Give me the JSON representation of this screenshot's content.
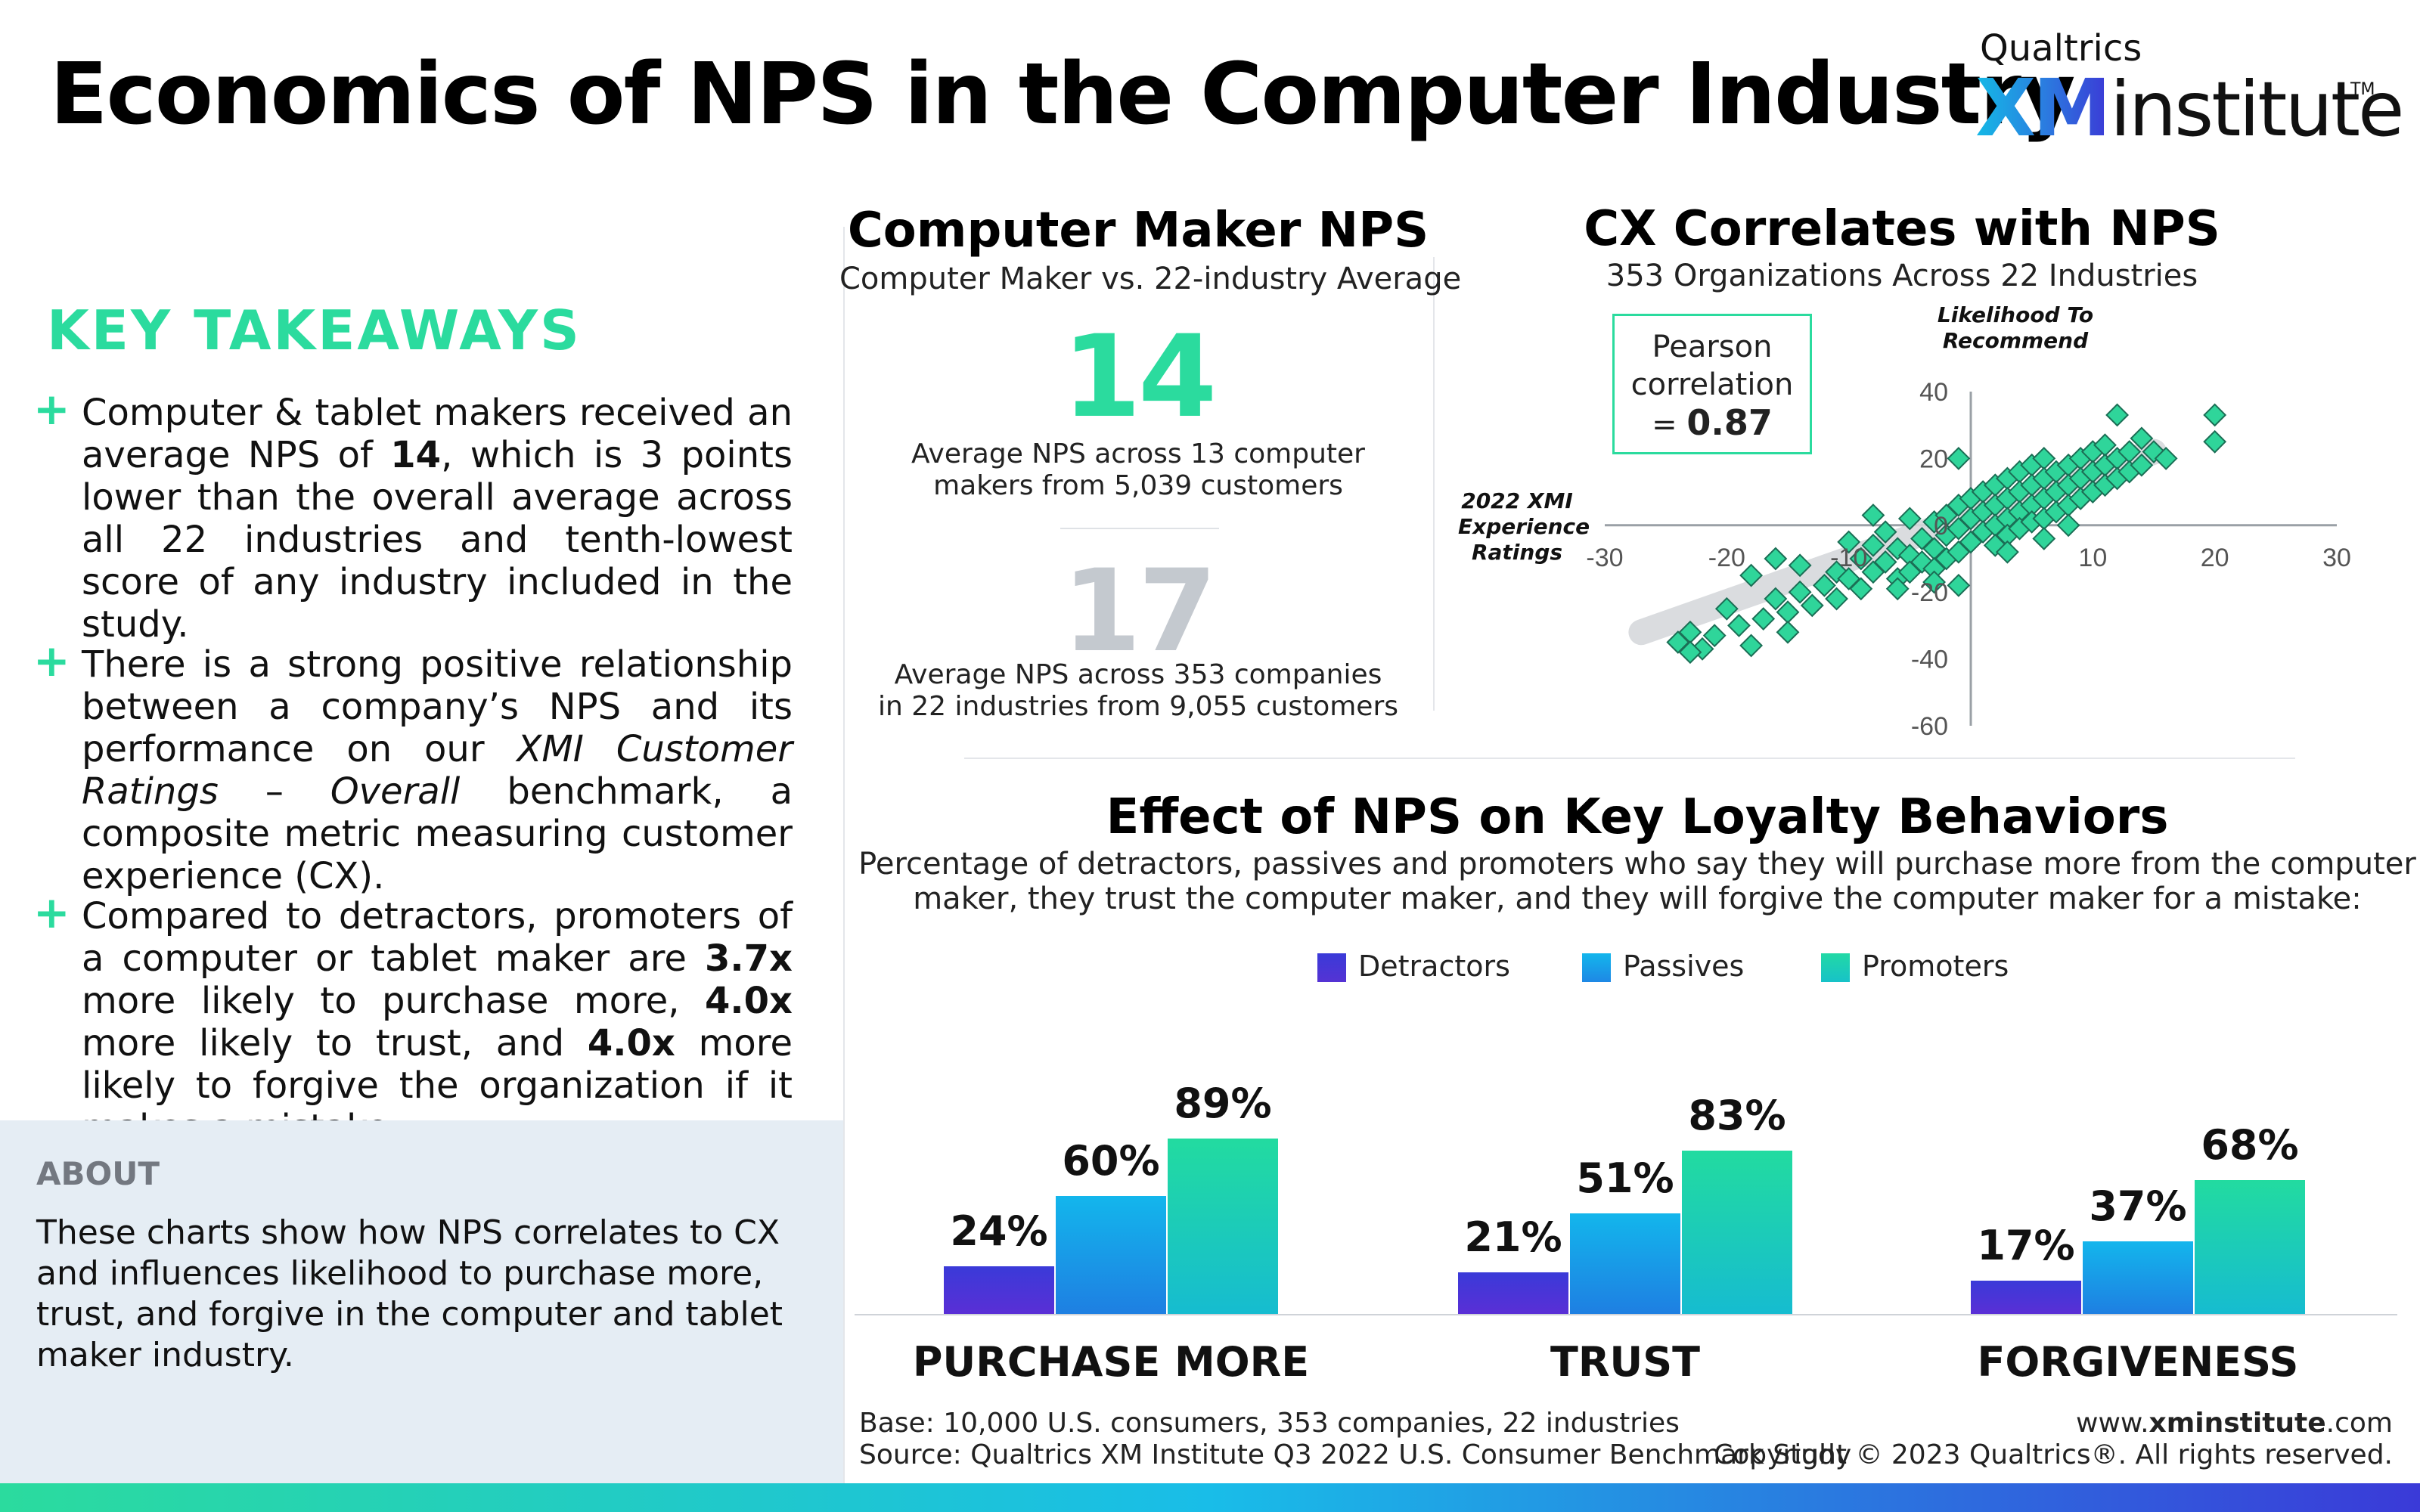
{
  "header": {
    "title": "Economics of NPS in the Computer Industry",
    "logo_top": "Qualtrics",
    "logo_xm": "XM",
    "logo_institute": "institute",
    "logo_tm": "TM"
  },
  "left": {
    "takeaways_heading": "KEY TAKEAWAYS",
    "bullet_symbol": "+",
    "p1": {
      "a": "Computer & tablet makers received an average NPS of ",
      "b": "14",
      "c": ", which is 3 points lower than the overall average across all 22 industries and tenth-lowest score of any industry included in the study."
    },
    "p2": {
      "a": "There is a strong positive relationship between a company’s NPS and its performance on our ",
      "i1": "XMI Customer Ratings",
      "mid": " – ",
      "i2": "Overall",
      "c": " benchmark, a composite metric measuring customer experience (CX)."
    },
    "p3": {
      "a": "Compared to detractors, promoters of a computer or tablet maker are ",
      "b1": "3.7x",
      "c": " more likely to purchase more, ",
      "b2": "4.0x",
      "d": " more likely to trust, and ",
      "b3": "4.0x",
      "e": " more likely to forgive the organization if it makes a mistake."
    },
    "about_heading": "ABOUT",
    "about_text": "These charts show how NPS correlates to CX and influences likelihood to purchase more, trust, and forgive in the computer and tablet maker industry."
  },
  "nps_panel": {
    "title": "Computer Maker NPS",
    "subtitle": "Computer Maker vs. 22-industry Average",
    "value_industry": "14",
    "desc_industry_1": "Average NPS across 13 computer",
    "desc_industry_2": "makers from 5,039 customers",
    "value_average": "17",
    "desc_average_1": "Average NPS across 353 companies",
    "desc_average_2": "in 22 industries from 9,055 customers"
  },
  "colors": {
    "accent": "#2bdb9e",
    "detractors": "#4a34d6",
    "passives": "#13b6ec",
    "promoters": "#22d9a5",
    "grey": "#c4c9cf"
  },
  "chart_data": [
    {
      "type": "scatter",
      "title": "CX Correlates with NPS",
      "subtitle": "353 Organizations Across 22 Industries",
      "xlabel": "2022 XMI Experience Ratings",
      "ylabel": "Likelihood To Recommend",
      "annotation": {
        "line1": "Pearson",
        "line2": "correlation",
        "line3_prefix": "= ",
        "value": "0.87"
      },
      "xlim": [
        -30,
        30
      ],
      "ylim": [
        -60,
        40
      ],
      "xticks": [
        "-30",
        "-20",
        "-10",
        "10",
        "20",
        "30"
      ],
      "yticks": [
        "40",
        "20",
        "0",
        "-20",
        "-40",
        "-60"
      ],
      "xtick_values": [
        -30,
        -20,
        -10,
        10,
        20,
        30
      ],
      "ytick_values": [
        40,
        20,
        0,
        -20,
        -40,
        -60
      ],
      "trend_band": [
        [
          -27,
          -32
        ],
        [
          15,
          22
        ]
      ],
      "points": [
        [
          -24,
          -35
        ],
        [
          -23,
          -32
        ],
        [
          -22,
          -37
        ],
        [
          -23,
          -38
        ],
        [
          -21,
          -33
        ],
        [
          -20,
          -25
        ],
        [
          -19,
          -30
        ],
        [
          -18,
          -36
        ],
        [
          -17,
          -28
        ],
        [
          -16,
          -22
        ],
        [
          -15,
          -26
        ],
        [
          -15,
          -32
        ],
        [
          -14,
          -20
        ],
        [
          -13,
          -24
        ],
        [
          -14,
          -12
        ],
        [
          -12,
          -18
        ],
        [
          -11,
          -14
        ],
        [
          -11,
          -22
        ],
        [
          -10,
          -16
        ],
        [
          -9,
          -10
        ],
        [
          -9,
          -19
        ],
        [
          -8,
          -6
        ],
        [
          -8,
          -14
        ],
        [
          -7,
          -2
        ],
        [
          -7,
          -11
        ],
        [
          -6,
          -7
        ],
        [
          -6,
          -16
        ],
        [
          -5,
          2
        ],
        [
          -5,
          -9
        ],
        [
          -5,
          -14
        ],
        [
          -4,
          -4
        ],
        [
          -4,
          -11
        ],
        [
          -3,
          1
        ],
        [
          -3,
          -7
        ],
        [
          -3,
          -13
        ],
        [
          -2,
          3
        ],
        [
          -2,
          -3
        ],
        [
          -2,
          -10
        ],
        [
          -1,
          6
        ],
        [
          -1,
          -1
        ],
        [
          -1,
          -8
        ],
        [
          0,
          8
        ],
        [
          0,
          2
        ],
        [
          0,
          -5
        ],
        [
          1,
          10
        ],
        [
          1,
          4
        ],
        [
          1,
          -2
        ],
        [
          2,
          12
        ],
        [
          2,
          6
        ],
        [
          2,
          0
        ],
        [
          2,
          -6
        ],
        [
          3,
          14
        ],
        [
          3,
          8
        ],
        [
          3,
          2
        ],
        [
          3,
          -3
        ],
        [
          4,
          16
        ],
        [
          4,
          10
        ],
        [
          4,
          4
        ],
        [
          4,
          -1
        ],
        [
          5,
          18
        ],
        [
          5,
          12
        ],
        [
          5,
          6
        ],
        [
          5,
          1
        ],
        [
          6,
          20
        ],
        [
          6,
          14
        ],
        [
          6,
          8
        ],
        [
          6,
          2
        ],
        [
          7,
          16
        ],
        [
          7,
          10
        ],
        [
          7,
          4
        ],
        [
          8,
          18
        ],
        [
          8,
          12
        ],
        [
          8,
          6
        ],
        [
          9,
          20
        ],
        [
          9,
          14
        ],
        [
          9,
          8
        ],
        [
          10,
          22
        ],
        [
          10,
          16
        ],
        [
          10,
          10
        ],
        [
          11,
          24
        ],
        [
          11,
          18
        ],
        [
          11,
          12
        ],
        [
          12,
          20
        ],
        [
          12,
          14
        ],
        [
          13,
          22
        ],
        [
          13,
          16
        ],
        [
          14,
          26
        ],
        [
          14,
          18
        ],
        [
          15,
          22
        ],
        [
          16,
          20
        ],
        [
          20,
          33
        ],
        [
          20,
          25
        ],
        [
          12,
          33
        ],
        [
          -1,
          20
        ],
        [
          -8,
          3
        ],
        [
          -10,
          -5
        ],
        [
          -6,
          -19
        ],
        [
          -18,
          -15
        ],
        [
          -16,
          -10
        ],
        [
          3,
          -8
        ],
        [
          6,
          -4
        ],
        [
          8,
          0
        ],
        [
          -1,
          -18
        ],
        [
          -3,
          -17
        ]
      ]
    },
    {
      "type": "bar",
      "title": "Effect of NPS on Key Loyalty Behaviors",
      "subtitle_1": "Percentage of detractors, passives and promoters who say they will purchase more from the computer",
      "subtitle_2": "maker, they trust the computer maker, and they will forgive the computer maker for a mistake:",
      "categories": [
        "PURCHASE MORE",
        "TRUST",
        "FORGIVENESS"
      ],
      "series": [
        {
          "name": "Detractors",
          "values": [
            24,
            21,
            17
          ],
          "labels": [
            "24%",
            "21%",
            "17%"
          ]
        },
        {
          "name": "Passives",
          "values": [
            60,
            51,
            37
          ],
          "labels": [
            "60%",
            "51%",
            "37%"
          ]
        },
        {
          "name": "Promoters",
          "values": [
            89,
            83,
            68
          ],
          "labels": [
            "89%",
            "83%",
            "68%"
          ]
        }
      ],
      "ylim": [
        0,
        100
      ],
      "legend": "top-center"
    }
  ],
  "footer": {
    "base": "Base: 10,000 U.S. consumers, 353 companies, 22 industries",
    "source": "Source: Qualtrics XM Institute Q3 2022 U.S. Consumer Benchmark Study",
    "site_prefix": "www.",
    "site_bold": "xminstitute",
    "site_suffix": ".com",
    "copyright": "Copyright © 2023 Qualtrics®. All rights reserved."
  }
}
